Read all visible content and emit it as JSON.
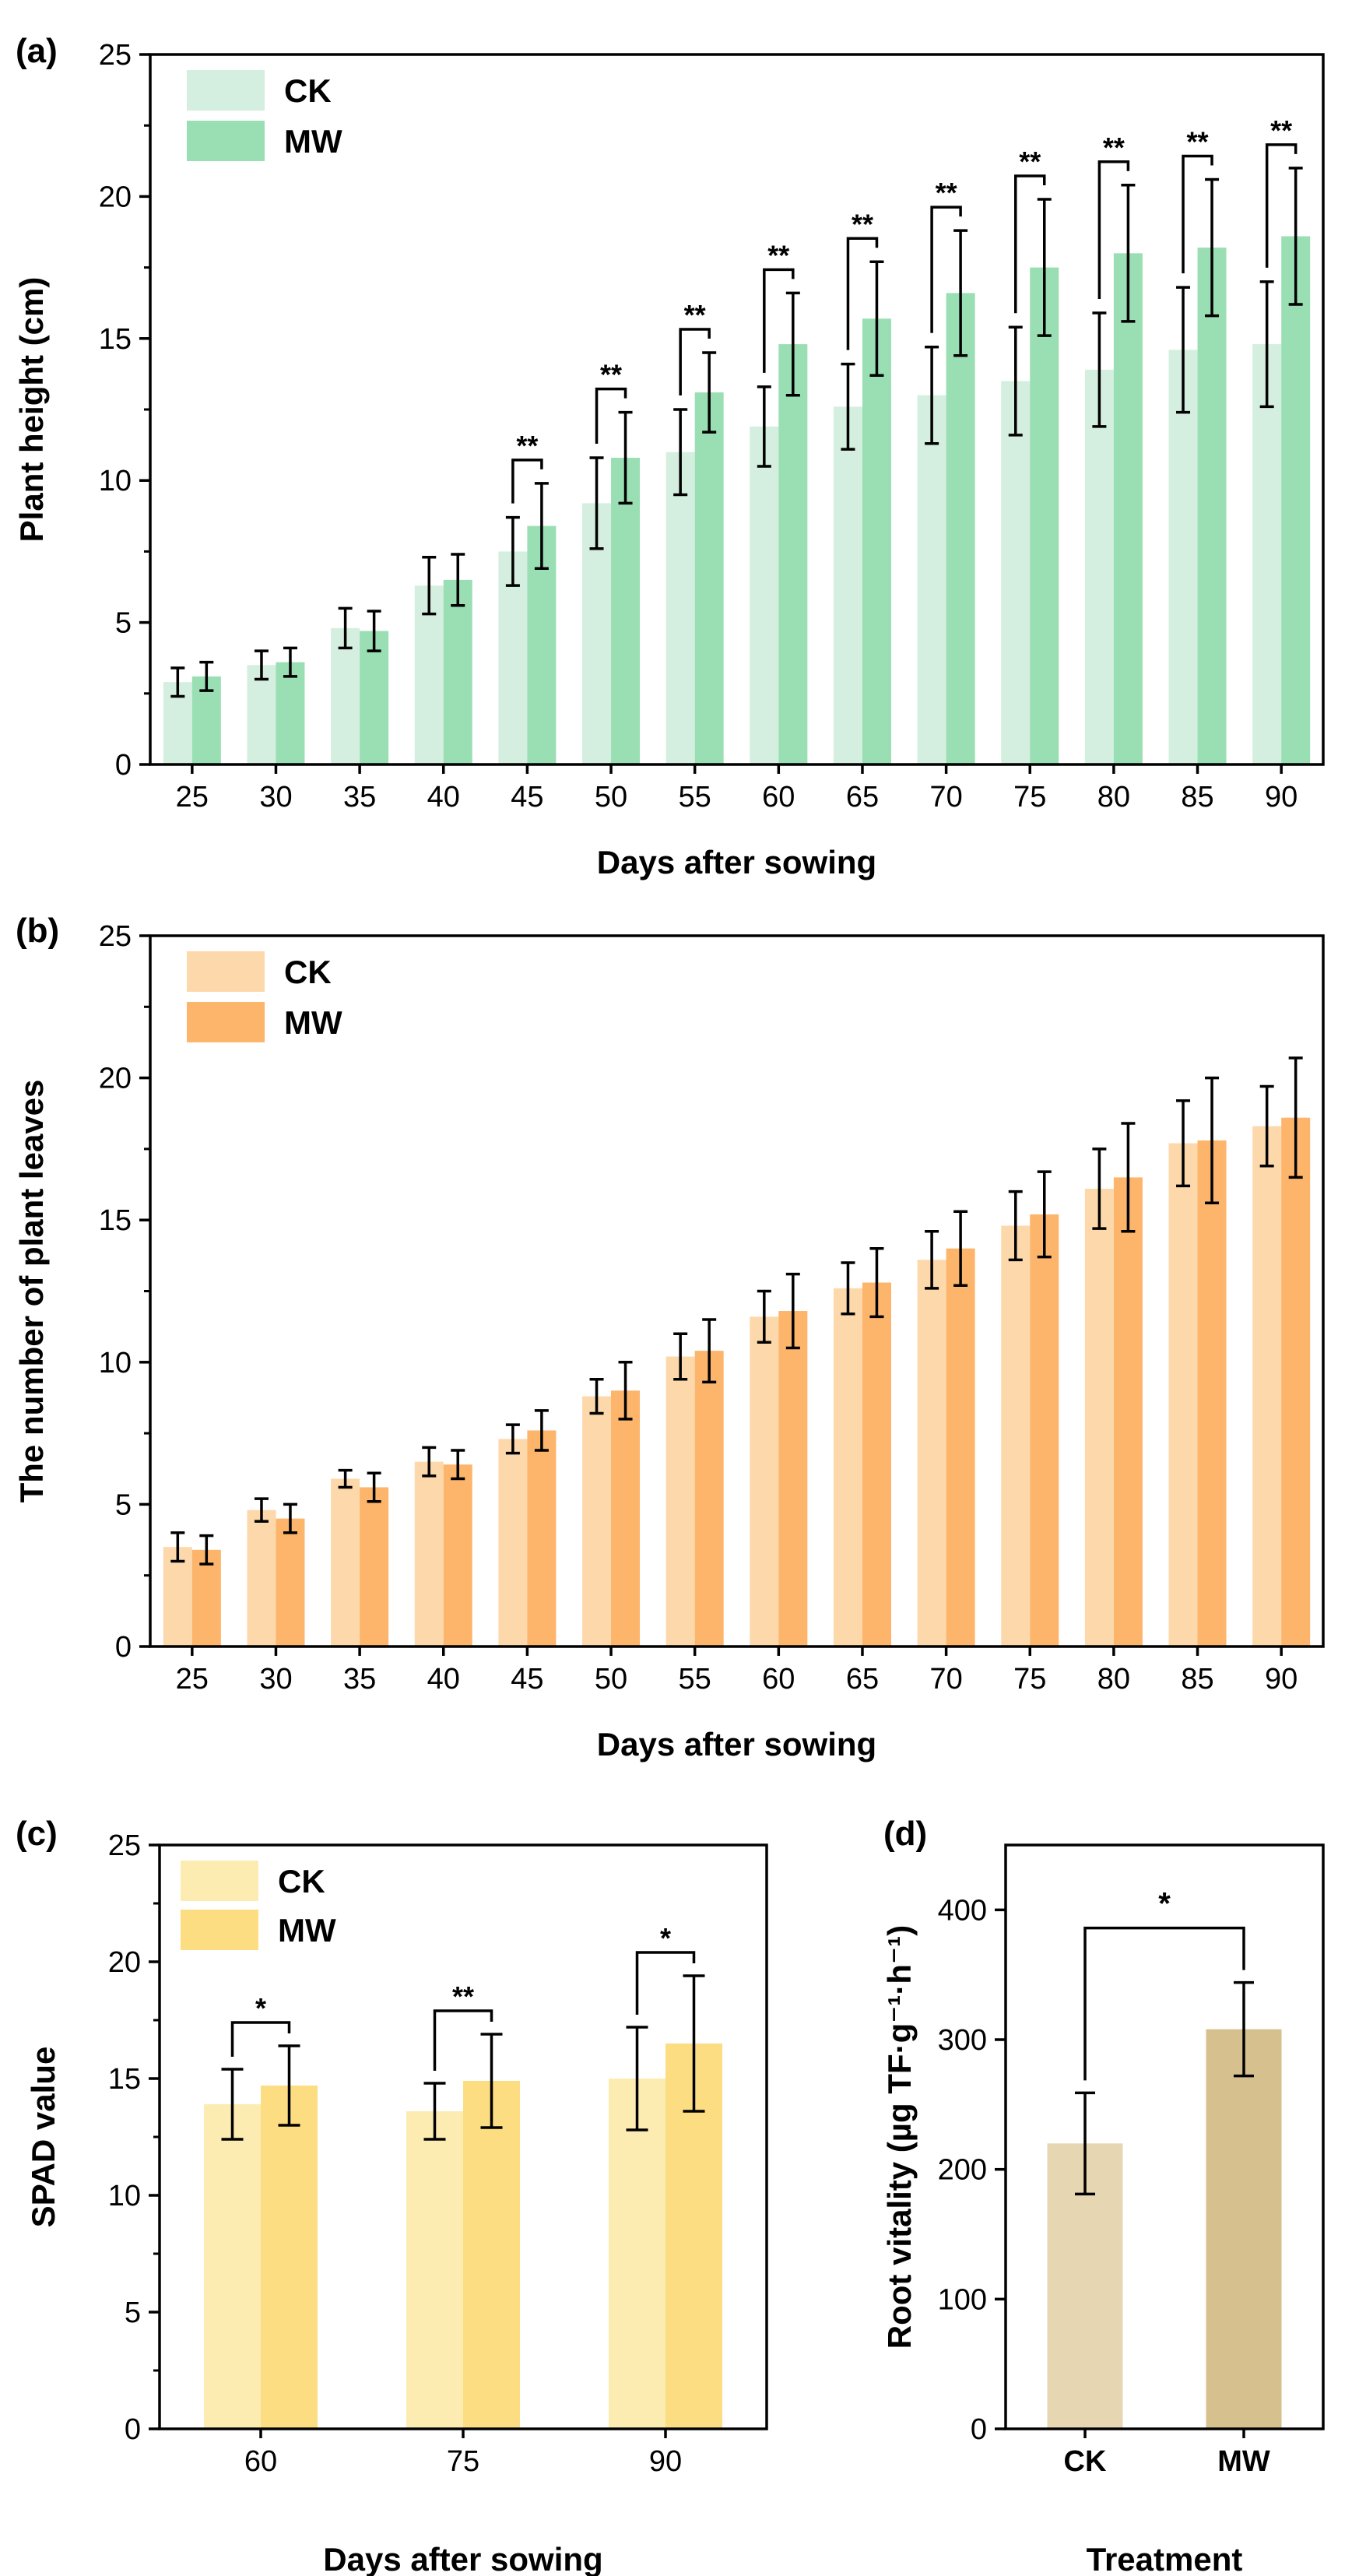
{
  "chart_data": [
    {
      "panel": "(a)",
      "type": "bar",
      "xlabel": "Days after sowing",
      "ylabel": "Plant height (cm)",
      "ylim": [
        0,
        25
      ],
      "yticks": [
        0,
        5,
        10,
        15,
        20,
        25
      ],
      "categories": [
        "25",
        "30",
        "35",
        "40",
        "45",
        "50",
        "55",
        "60",
        "65",
        "70",
        "75",
        "80",
        "85",
        "90"
      ],
      "legend_position": "top-left",
      "series": [
        {
          "name": "CK",
          "color": "#d4efdf",
          "values": [
            2.9,
            3.5,
            4.8,
            6.3,
            7.5,
            9.2,
            11.0,
            11.9,
            12.6,
            13.0,
            13.5,
            13.9,
            14.6,
            14.8
          ],
          "errors": [
            0.5,
            0.5,
            0.7,
            1.0,
            1.2,
            1.6,
            1.5,
            1.4,
            1.5,
            1.7,
            1.9,
            2.0,
            2.2,
            2.2
          ]
        },
        {
          "name": "MW",
          "color": "#9adfb3",
          "values": [
            3.1,
            3.6,
            4.7,
            6.5,
            8.4,
            10.8,
            13.1,
            14.8,
            15.7,
            16.6,
            17.5,
            18.0,
            18.2,
            18.6
          ],
          "errors": [
            0.5,
            0.5,
            0.7,
            0.9,
            1.5,
            1.6,
            1.4,
            1.8,
            2.0,
            2.2,
            2.4,
            2.4,
            2.4,
            2.4
          ]
        }
      ],
      "significance": [
        "",
        "",
        "",
        "",
        "**",
        "**",
        "**",
        "**",
        "**",
        "**",
        "**",
        "**",
        "**",
        "**"
      ]
    },
    {
      "panel": "(b)",
      "type": "bar",
      "xlabel": "Days after sowing",
      "ylabel": "The number of plant leaves",
      "ylim": [
        0,
        25
      ],
      "yticks": [
        0,
        5,
        10,
        15,
        20,
        25
      ],
      "categories": [
        "25",
        "30",
        "35",
        "40",
        "45",
        "50",
        "55",
        "60",
        "65",
        "70",
        "75",
        "80",
        "85",
        "90"
      ],
      "legend_position": "top-left",
      "series": [
        {
          "name": "CK",
          "color": "#fdd8ab",
          "values": [
            3.5,
            4.8,
            5.9,
            6.5,
            7.3,
            8.8,
            10.2,
            11.6,
            12.6,
            13.6,
            14.8,
            16.1,
            17.7,
            18.3
          ],
          "errors": [
            0.5,
            0.4,
            0.3,
            0.5,
            0.5,
            0.6,
            0.8,
            0.9,
            0.9,
            1.0,
            1.2,
            1.4,
            1.5,
            1.4
          ]
        },
        {
          "name": "MW",
          "color": "#fdb46b",
          "values": [
            3.4,
            4.5,
            5.6,
            6.4,
            7.6,
            9.0,
            10.4,
            11.8,
            12.8,
            14.0,
            15.2,
            16.5,
            17.8,
            18.6
          ],
          "errors": [
            0.5,
            0.5,
            0.5,
            0.5,
            0.7,
            1.0,
            1.1,
            1.3,
            1.2,
            1.3,
            1.5,
            1.9,
            2.2,
            2.1
          ]
        }
      ],
      "significance": []
    },
    {
      "panel": "(c)",
      "type": "bar",
      "xlabel": "Days after sowing",
      "ylabel": "SPAD value",
      "ylim": [
        0,
        25
      ],
      "yticks": [
        0,
        5,
        10,
        15,
        20,
        25
      ],
      "categories": [
        "60",
        "75",
        "90"
      ],
      "legend_position": "top-left",
      "series": [
        {
          "name": "CK",
          "color": "#fdecb2",
          "values": [
            13.9,
            13.6,
            15.0
          ],
          "errors": [
            1.5,
            1.2,
            2.2
          ]
        },
        {
          "name": "MW",
          "color": "#fcdd82",
          "values": [
            14.7,
            14.9,
            16.5
          ],
          "errors": [
            1.7,
            2.0,
            2.9
          ]
        }
      ],
      "significance": [
        "*",
        "**",
        "*"
      ]
    },
    {
      "panel": "(d)",
      "type": "bar",
      "xlabel": "Treatment",
      "ylabel": "Root vitality (µg TF·g⁻¹·h⁻¹)",
      "ylim": [
        0,
        450
      ],
      "yticks": [
        0,
        100,
        200,
        300,
        400
      ],
      "categories": [
        "CK",
        "MW"
      ],
      "series": [
        {
          "name": "Root vitality",
          "colors": [
            "#e6d7b2",
            "#d6c18e"
          ],
          "values": [
            220,
            308
          ],
          "errors": [
            39,
            36
          ]
        }
      ],
      "significance": "*"
    }
  ]
}
